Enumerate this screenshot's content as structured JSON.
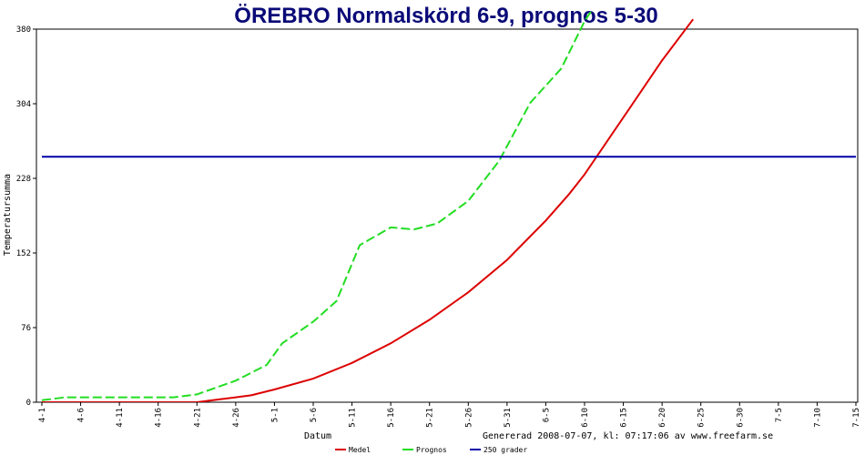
{
  "chart_data": {
    "type": "line",
    "title": "ÖREBRO Normalskörd 6-9, prognos 5-30",
    "xlabel": "Datum",
    "ylabel": "Temperatursumma",
    "ylim": [
      0,
      380
    ],
    "yticks": [
      0,
      76,
      152,
      228,
      304,
      380
    ],
    "x_dates": [
      "2008-04-01",
      "2008-04-06",
      "2008-04-11",
      "2008-04-16",
      "2008-04-21",
      "2008-04-26",
      "2008-05-01",
      "2008-05-06",
      "2008-05-11",
      "2008-05-16",
      "2008-05-21",
      "2008-05-26",
      "2008-05-31",
      "2008-06-05",
      "2008-06-10",
      "2008-06-15",
      "2008-06-20",
      "2008-06-25",
      "2008-06-30",
      "2008-07-05",
      "2008-07-10",
      "2008-07-15"
    ],
    "xtick_labels": [
      "4-1",
      "4-6",
      "4-11",
      "4-16",
      "4-21",
      "4-26",
      "5-1",
      "5-6",
      "5-11",
      "5-16",
      "5-21",
      "5-26",
      "5-31",
      "6-5",
      "6-10",
      "6-15",
      "6-20",
      "6-25",
      "6-30",
      "7-5",
      "7-10",
      "7-15"
    ],
    "grid": false,
    "legend_position": "bottom",
    "footer_text": "Genererad 2008-07-07, kl: 07:17:06 av www.freefarm.se",
    "series": [
      {
        "name": "Medel",
        "color": "#dd0000",
        "style": "solid",
        "points": [
          [
            "2008-04-01",
            0
          ],
          [
            "2008-04-21",
            0
          ],
          [
            "2008-04-24",
            3
          ],
          [
            "2008-04-28",
            7
          ],
          [
            "2008-05-01",
            13
          ],
          [
            "2008-05-06",
            24
          ],
          [
            "2008-05-11",
            40
          ],
          [
            "2008-05-16",
            60
          ],
          [
            "2008-05-21",
            84
          ],
          [
            "2008-05-26",
            112
          ],
          [
            "2008-05-31",
            145
          ],
          [
            "2008-06-05",
            185
          ],
          [
            "2008-06-08",
            212
          ],
          [
            "2008-06-10",
            232
          ],
          [
            "2008-06-15",
            290
          ],
          [
            "2008-06-20",
            348
          ],
          [
            "2008-06-24",
            390
          ]
        ]
      },
      {
        "name": "Prognos",
        "color": "#22dd22",
        "style": "dashed",
        "points": [
          [
            "2008-04-01",
            2
          ],
          [
            "2008-04-04",
            5
          ],
          [
            "2008-04-08",
            5
          ],
          [
            "2008-04-18",
            5
          ],
          [
            "2008-04-21",
            8
          ],
          [
            "2008-04-26",
            22
          ],
          [
            "2008-04-30",
            38
          ],
          [
            "2008-05-02",
            60
          ],
          [
            "2008-05-06",
            82
          ],
          [
            "2008-05-09",
            103
          ],
          [
            "2008-05-12",
            160
          ],
          [
            "2008-05-16",
            178
          ],
          [
            "2008-05-19",
            176
          ],
          [
            "2008-05-22",
            182
          ],
          [
            "2008-05-26",
            205
          ],
          [
            "2008-05-30",
            246
          ],
          [
            "2008-06-03",
            305
          ],
          [
            "2008-06-07",
            340
          ],
          [
            "2008-06-10",
            388
          ],
          [
            "2008-06-11",
            400
          ]
        ]
      },
      {
        "name": "250 grader",
        "color": "#0000aa",
        "style": "solid",
        "points": [
          [
            "2008-04-01",
            250
          ],
          [
            "2008-07-15",
            250
          ]
        ]
      }
    ]
  }
}
